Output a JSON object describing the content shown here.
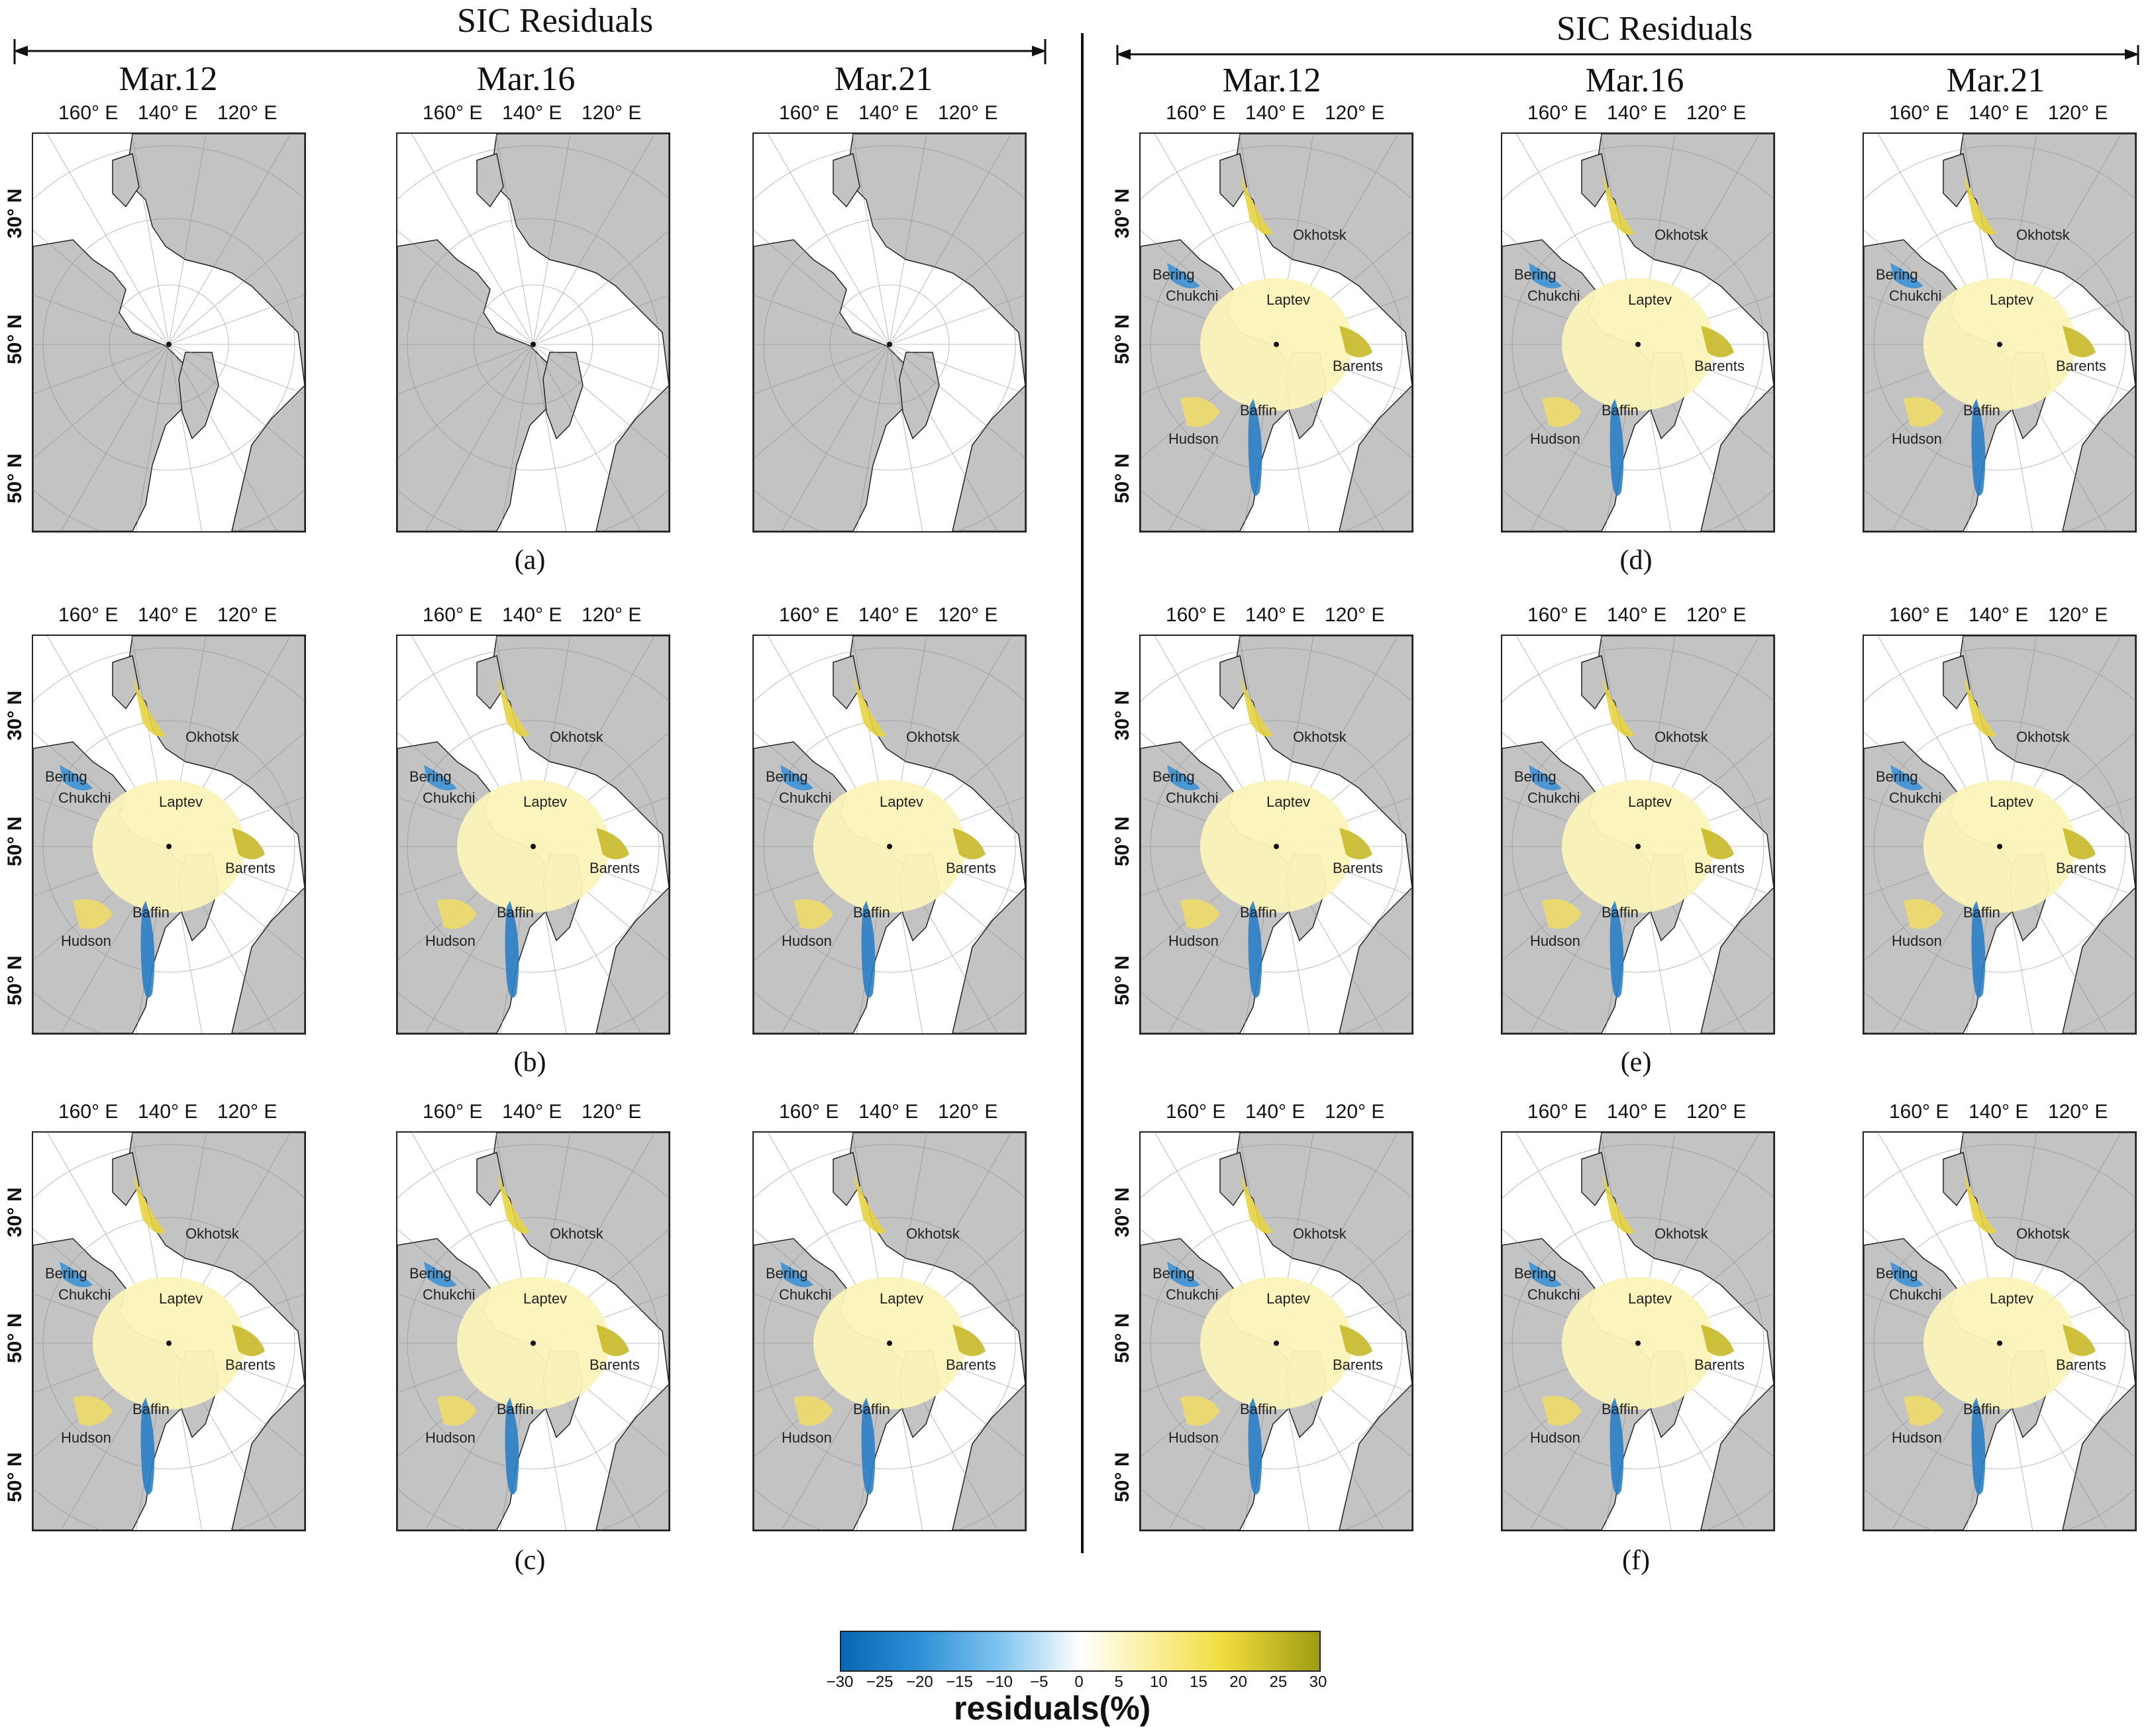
{
  "figure": {
    "left_title": "SIC Residuals",
    "right_title": "SIC Residuals",
    "dates": [
      "Mar.12",
      "Mar.16",
      "Mar.21"
    ],
    "lon_labels": [
      "160° E",
      "140° E",
      "120° E"
    ],
    "lat_labels": [
      "30° N",
      "50° N",
      "50° N"
    ],
    "region_labels": [
      "Okhotsk",
      "Bering",
      "Chukchi",
      "Laptev",
      "Barents",
      "Baffin",
      "Hudson"
    ],
    "panel_letters": {
      "a": "(a)",
      "b": "(b)",
      "c": "(c)",
      "d": "(d)",
      "e": "(e)",
      "f": "(f)"
    }
  },
  "panels": {
    "a": {
      "has_residuals": false
    },
    "b": {
      "has_residuals": true
    },
    "c": {
      "has_residuals": true
    },
    "d": {
      "has_residuals": true
    },
    "e": {
      "has_residuals": true
    },
    "f": {
      "has_residuals": true
    }
  },
  "colorbar": {
    "label": "residuals(%)",
    "min": -30,
    "max": 30,
    "ticks": [
      "−30",
      "−25",
      "−20",
      "−15",
      "−10",
      "−5",
      "0",
      "5",
      "10",
      "15",
      "20",
      "25",
      "30"
    ],
    "colors": {
      "negative": "#0a67b3",
      "zero": "#ffffff",
      "positive": "#9e9c14",
      "land": "#c3c3c3"
    }
  }
}
